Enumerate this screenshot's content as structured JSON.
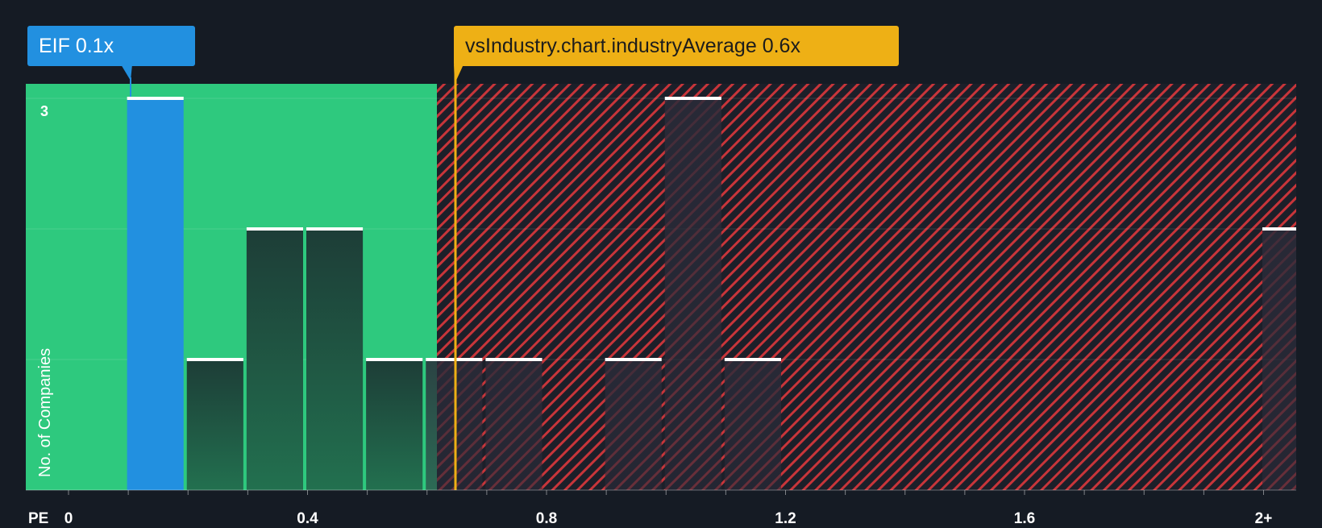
{
  "chart_data": {
    "type": "bar",
    "xlabel": "PE",
    "ylabel": "No. of Companies",
    "x_ticks": [
      "0",
      "0.4",
      "0.8",
      "1.2",
      "1.6",
      "2+"
    ],
    "x_tick_values": [
      0,
      0.4,
      0.8,
      1.2,
      1.6,
      2.0
    ],
    "y_ticks": [
      "3"
    ],
    "y_tick_values": [
      3
    ],
    "xlim": [
      0,
      2.05
    ],
    "ylim": [
      0,
      3
    ],
    "bin_width": 0.1,
    "bars": [
      {
        "x": 0.1,
        "value": 3,
        "highlight": true
      },
      {
        "x": 0.2,
        "value": 1
      },
      {
        "x": 0.3,
        "value": 2
      },
      {
        "x": 0.4,
        "value": 2
      },
      {
        "x": 0.5,
        "value": 1
      },
      {
        "x": 0.6,
        "value": 1
      },
      {
        "x": 0.7,
        "value": 1
      },
      {
        "x": 0.9,
        "value": 1
      },
      {
        "x": 1.0,
        "value": 3
      },
      {
        "x": 1.1,
        "value": 1
      },
      {
        "x": 2.0,
        "value": 2
      }
    ],
    "company": {
      "label": "EIF 0.1x",
      "value": 0.1
    },
    "industry_average": {
      "label": "vsIndustry.chart.industryAverage 0.6x",
      "value": 0.6
    },
    "fair_zone_end": 0.6,
    "grid": true,
    "colors": {
      "background": "#151b24",
      "undervalued_zone": "#2ec97e",
      "overvalued_zone": "#e03a3e",
      "highlight_bar": "#2290e0",
      "bar": "#1e4a3c",
      "bar_cap": "#ffffff",
      "industry_line": "#eeb015",
      "axis_text": "#ffffff"
    }
  }
}
